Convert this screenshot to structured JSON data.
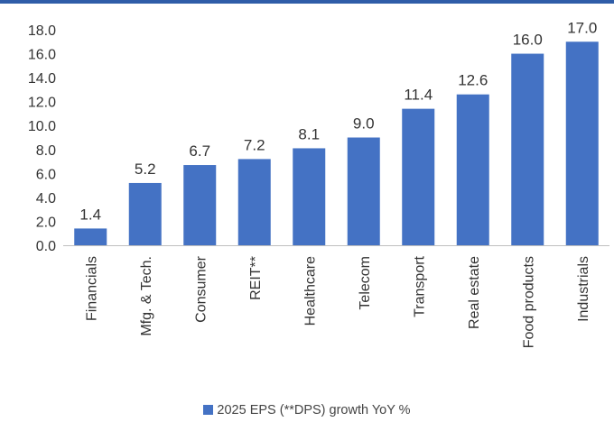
{
  "chart_data": {
    "type": "bar",
    "categories": [
      "Financials",
      "Mfg. & Tech.",
      "Consumer",
      "REIT**",
      "Healthcare",
      "Telecom",
      "Transport",
      "Real estate",
      "Food products",
      "Industrials"
    ],
    "series": [
      {
        "name": "2025 EPS (**DPS) growth YoY %",
        "values": [
          1.4,
          5.2,
          6.7,
          7.2,
          8.1,
          9.0,
          11.4,
          12.6,
          16.0,
          17.0
        ],
        "data_labels": [
          "1.4",
          "5.2",
          "6.7",
          "7.2",
          "8.1",
          "9.0",
          "11.4",
          "12.6",
          "16.0",
          "17.0"
        ],
        "color": "#4472c4"
      }
    ],
    "ylim": [
      0,
      18
    ],
    "yticks": [
      0,
      2,
      4,
      6,
      8,
      10,
      12,
      14,
      16,
      18
    ],
    "ytick_labels": [
      "0.0",
      "2.0",
      "4.0",
      "6.0",
      "8.0",
      "10.0",
      "12.0",
      "14.0",
      "16.0",
      "18.0"
    ],
    "grid": false,
    "legend_position": "bottom",
    "accent_color": "#2f5da8"
  }
}
